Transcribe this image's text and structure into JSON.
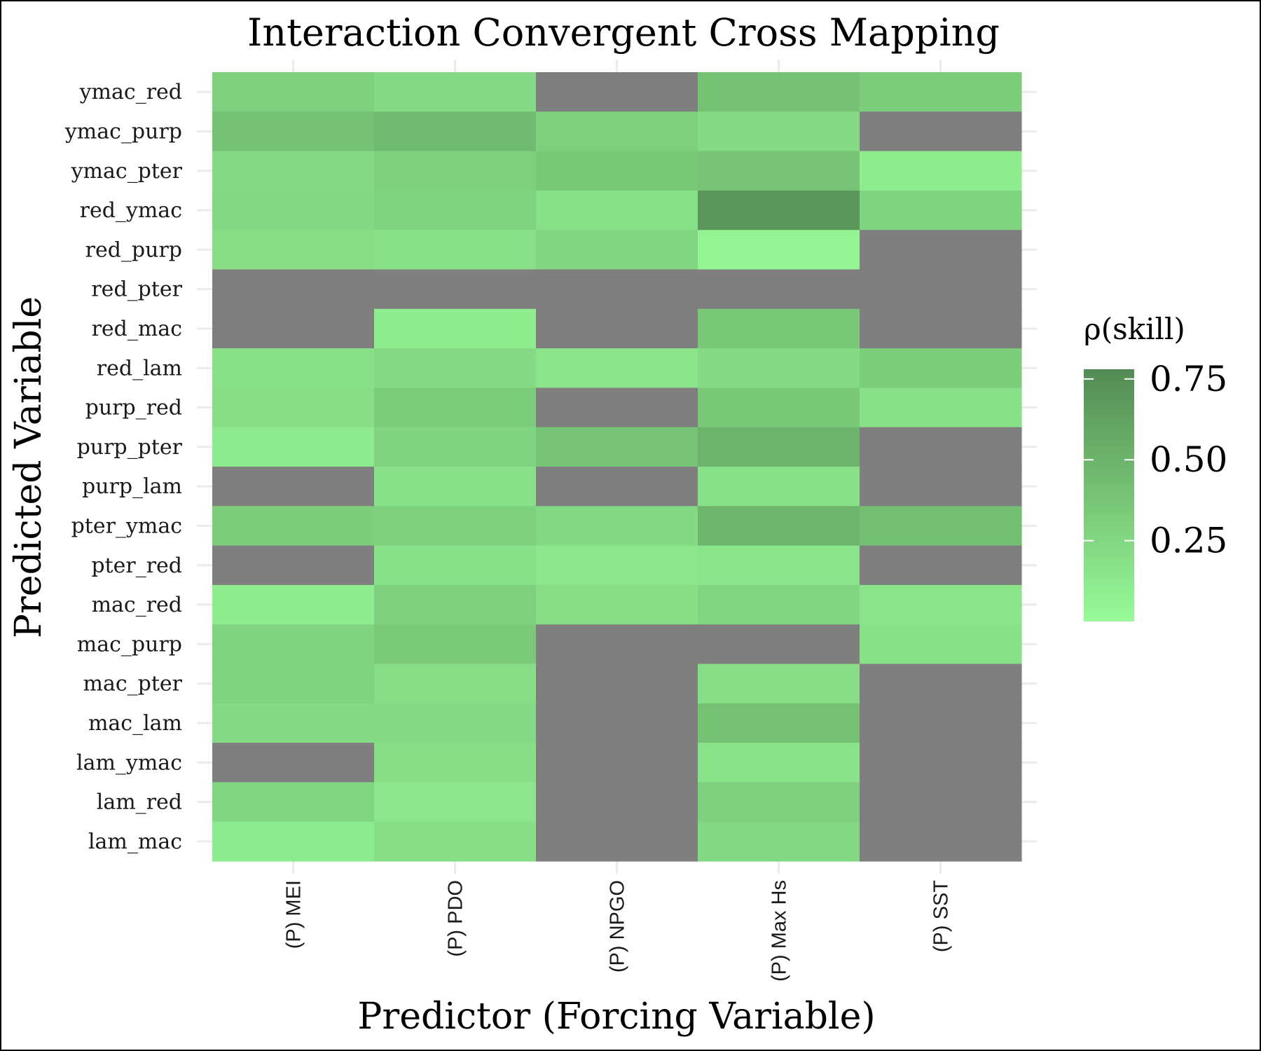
{
  "chart_data": {
    "type": "heatmap",
    "title": "Interaction Convergent Cross Mapping",
    "xlabel": "Predictor (Forcing Variable)",
    "ylabel": "Predicted Variable",
    "x_categories": [
      "(P) MEI",
      "(P) PDO",
      "(P) NPGO",
      "(P) Max Hs",
      "(P) SST"
    ],
    "y_categories": [
      "ymac_red",
      "ymac_purp",
      "ymac_pter",
      "red_ymac",
      "red_purp",
      "red_pter",
      "red_mac",
      "red_lam",
      "purp_red",
      "purp_pter",
      "purp_lam",
      "pter_ymac",
      "pter_red",
      "mac_red",
      "mac_purp",
      "mac_pter",
      "mac_lam",
      "lam_ymac",
      "lam_red",
      "lam_mac"
    ],
    "values": [
      [
        0.3,
        0.22,
        null,
        0.4,
        0.32
      ],
      [
        0.4,
        0.45,
        0.3,
        0.22,
        null
      ],
      [
        0.22,
        0.3,
        0.35,
        0.38,
        0.1
      ],
      [
        0.24,
        0.28,
        0.18,
        0.7,
        0.28
      ],
      [
        0.2,
        0.18,
        0.26,
        0.05,
        null
      ],
      [
        null,
        null,
        null,
        null,
        null
      ],
      [
        null,
        0.1,
        null,
        0.35,
        null
      ],
      [
        0.18,
        0.22,
        0.15,
        0.22,
        0.32
      ],
      [
        0.2,
        0.32,
        null,
        0.35,
        0.18
      ],
      [
        0.12,
        0.28,
        0.38,
        0.5,
        null
      ],
      [
        null,
        0.18,
        null,
        0.18,
        null
      ],
      [
        0.32,
        0.3,
        0.24,
        0.48,
        0.42
      ],
      [
        null,
        0.18,
        0.14,
        0.16,
        null
      ],
      [
        0.1,
        0.3,
        0.2,
        0.26,
        0.16
      ],
      [
        0.28,
        0.34,
        null,
        null,
        0.18
      ],
      [
        0.28,
        0.2,
        null,
        0.2,
        null
      ],
      [
        0.22,
        0.22,
        null,
        0.4,
        null
      ],
      [
        null,
        0.2,
        null,
        0.17,
        null
      ],
      [
        0.26,
        0.14,
        null,
        0.3,
        null
      ],
      [
        0.12,
        0.2,
        null,
        0.24,
        null
      ]
    ],
    "missing_color": "#7f7f7f",
    "legend": {
      "title": "ρ(skill)",
      "position": "right",
      "ticks": [
        0.25,
        0.5,
        0.75
      ],
      "tick_labels": [
        "0.25",
        "0.50",
        "0.75"
      ],
      "range": [
        0.0,
        0.78
      ],
      "low_color": "#98fb98",
      "high_color": "#548b54"
    }
  }
}
